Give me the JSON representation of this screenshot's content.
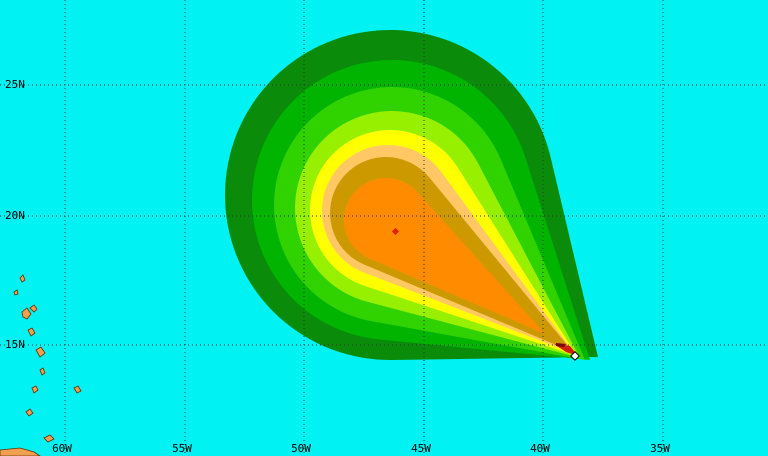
{
  "latitude_labels": [
    "25N",
    "20N",
    "15N"
  ],
  "longitude_labels": [
    "60W",
    "55W",
    "50W",
    "45W",
    "40W",
    "35W"
  ]
}
